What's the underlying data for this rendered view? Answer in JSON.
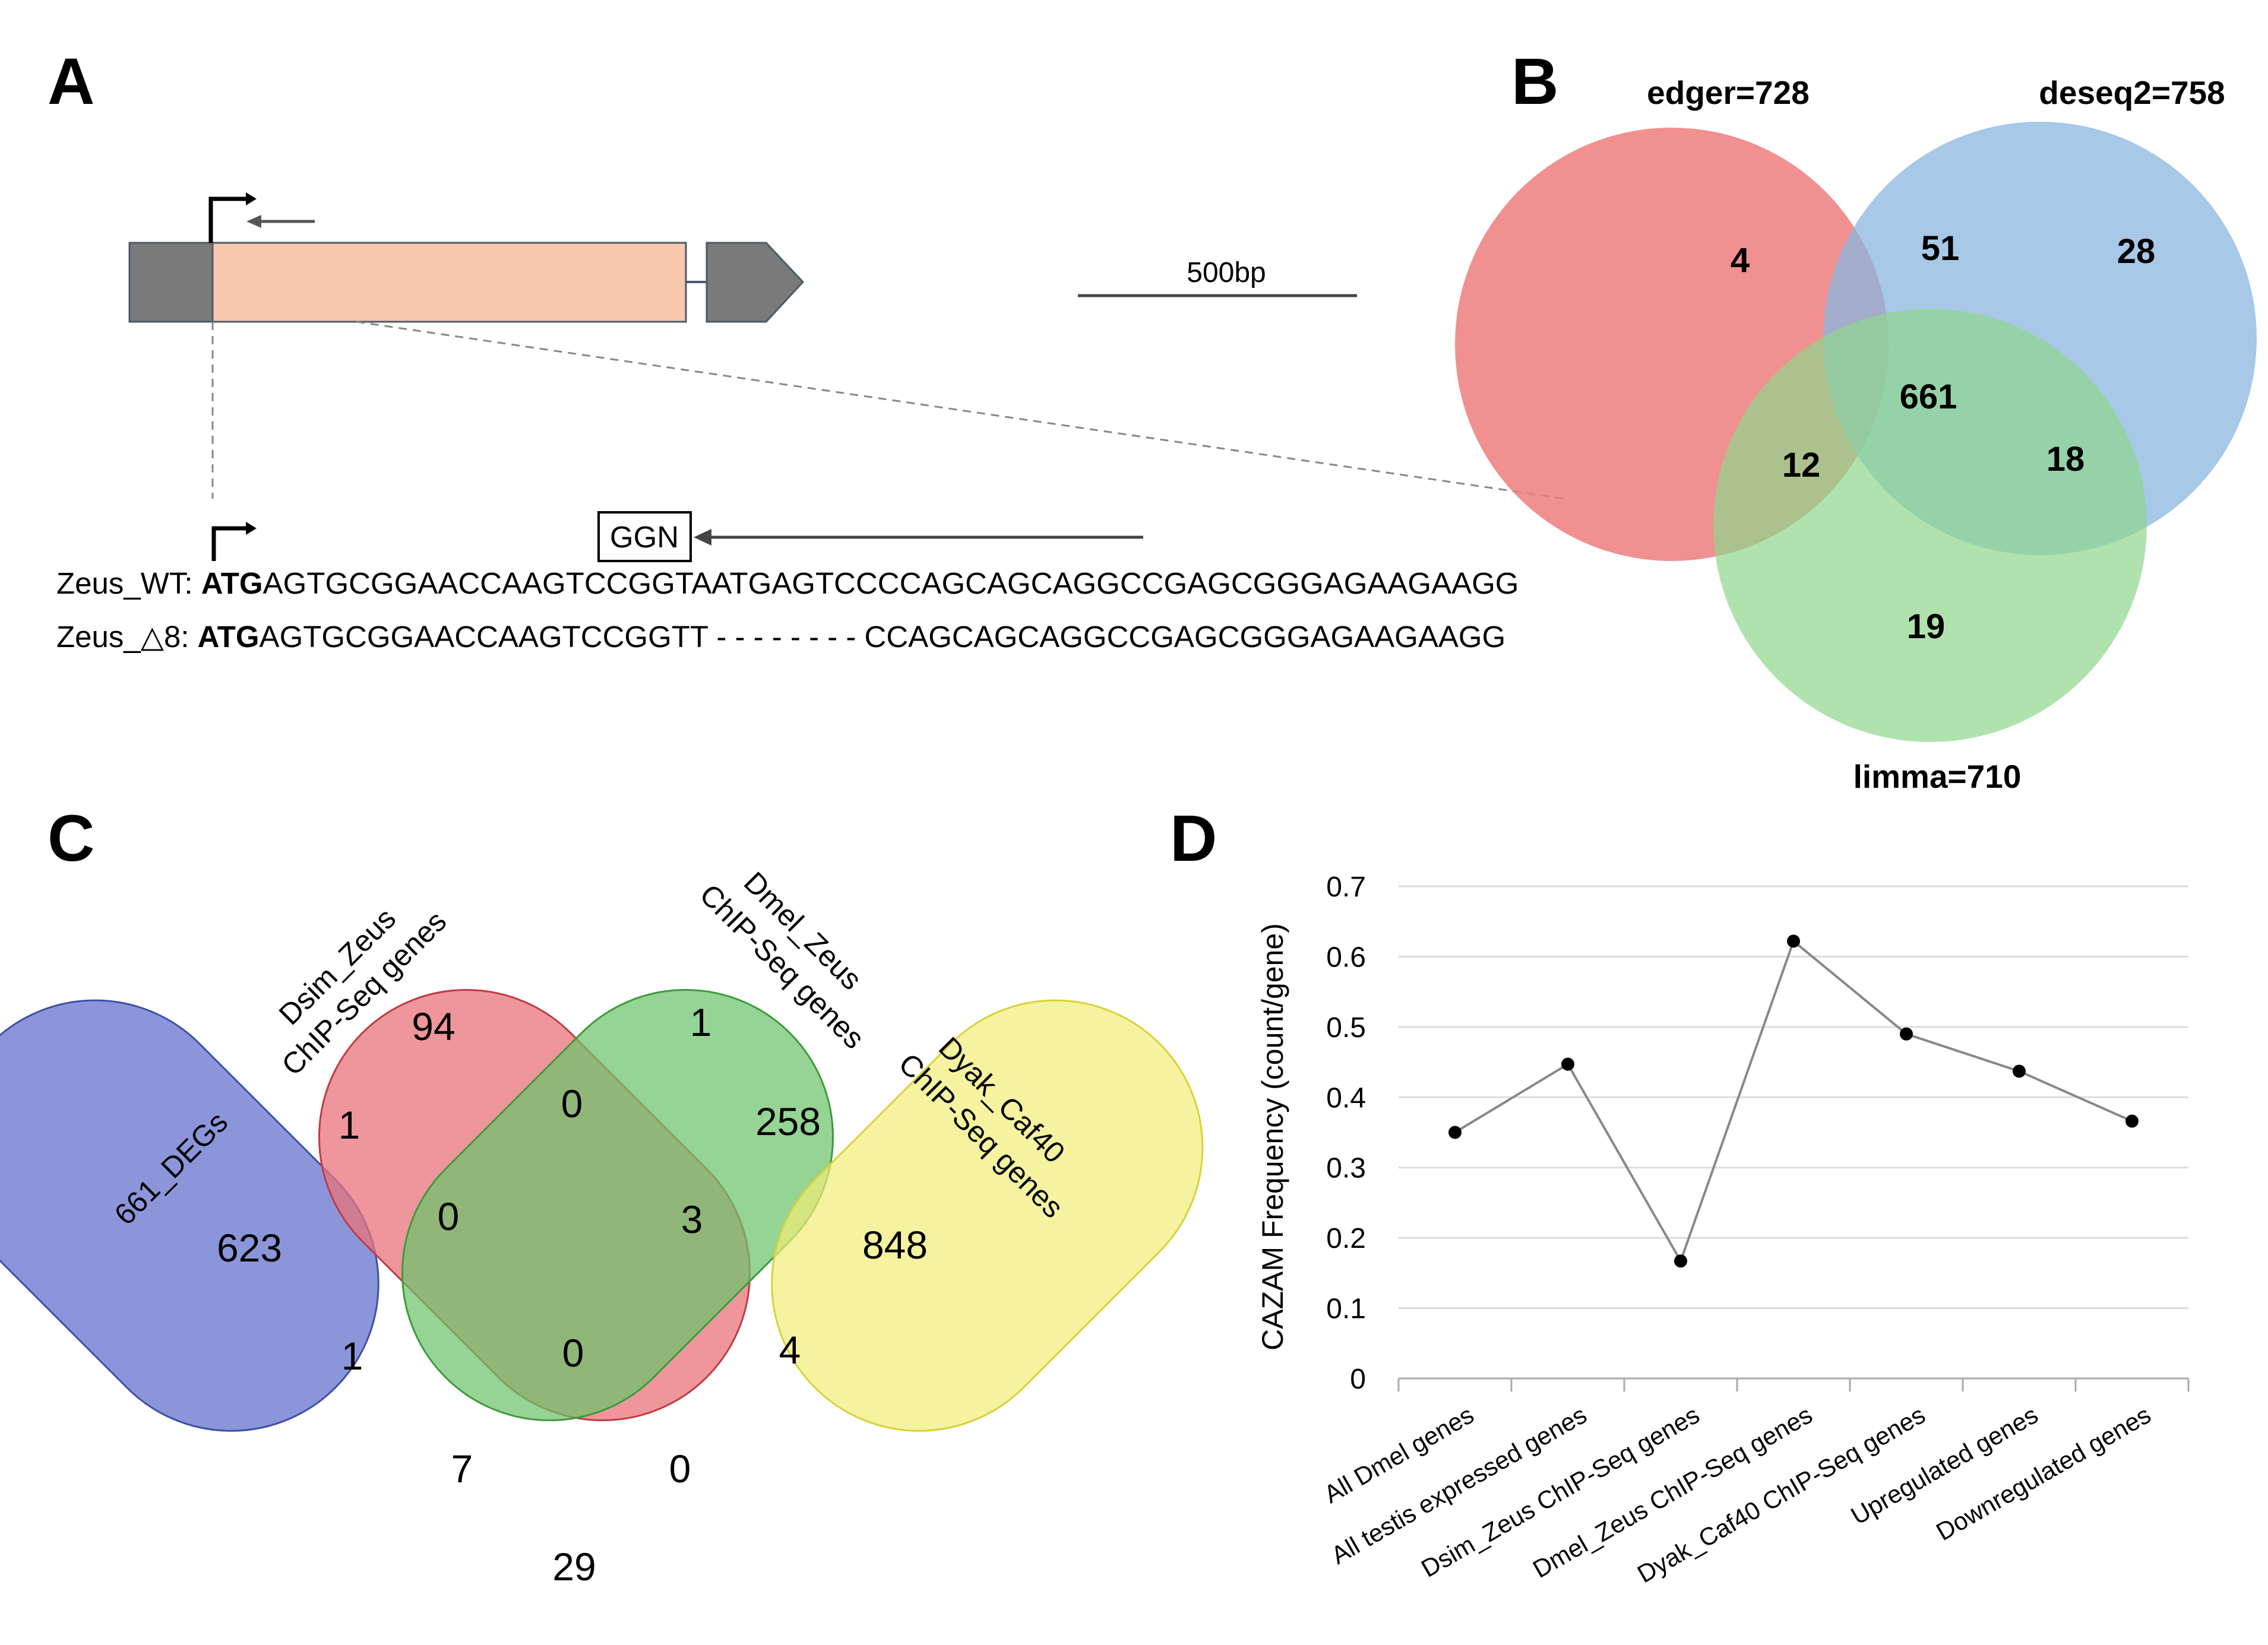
{
  "panels": {
    "a": "A",
    "b": "B",
    "c": "C",
    "d": "D"
  },
  "panel_a": {
    "scale_label": "500bp",
    "box_label": "GGN",
    "wt_label": "Zeus_WT: ",
    "wt_start": "ATG",
    "wt_seq": "AGTGCGGAACCAAGTCCGGTAATGAGTCCCCAGCAGCAGGCCGAGCGGGAGAAGAAGG",
    "mut_label": "Zeus_△8: ",
    "mut_start": "ATG",
    "mut_seq": "AGTGCGGAACCAAGTCCGGTT - - - - - - - -  CCAGCAGCAGGCCGAGCGGGAGAAGAAGG",
    "colors": {
      "exon": "#f7c8ae",
      "utr": "#7a7a7a"
    }
  },
  "panel_b": {
    "sets": [
      {
        "name": "edger=728",
        "color": "#ee7d7d"
      },
      {
        "name": "deseq2=758",
        "color": "#8ab6df"
      },
      {
        "name": "limma=710",
        "color": "#8ed68b"
      }
    ],
    "regions": {
      "edger_only": "4",
      "deseq2_only": "28",
      "limma_only": "19",
      "edger_deseq2": "51",
      "edger_limma": "12",
      "deseq2_limma": "18",
      "all": "661"
    }
  },
  "panel_c": {
    "sets": [
      {
        "name": "661_DEGs",
        "color": "#6a78d0"
      },
      {
        "name": "Dsim_Zeus",
        "line2": "ChIP-Seq genes",
        "color": "#e8737b"
      },
      {
        "name": "Dmel_Zeus",
        "line2": "ChIP-Seq genes",
        "color": "#6cc46b"
      },
      {
        "name": "Dyak_Caf40",
        "line2": "ChIP-Seq genes",
        "color": "#f1ee78"
      }
    ],
    "regions": {
      "degs_only": "623",
      "dsim_only": "94",
      "dmel_only": "1",
      "dyak_only": "848",
      "degs_dsim": "1",
      "dsim_dmel": "0",
      "dmel_dyak": "258",
      "degs_dsim_dmel": "0",
      "dsim_dmel_dyak": "3",
      "degs_dmel": "1",
      "all_four": "0",
      "dsim_dyak": "4",
      "degs_dmel_dyak": "7",
      "degs_dsim_dyak": "0",
      "degs_dyak": "29"
    }
  },
  "chart_data": {
    "type": "line",
    "title": "",
    "xlabel": "",
    "ylabel": "CAZAM Frequency (count/gene)",
    "ylim": [
      0,
      0.7
    ],
    "yticks": [
      "0",
      "0.1",
      "0.2",
      "0.3",
      "0.4",
      "0.5",
      "0.6",
      "0.7"
    ],
    "categories": [
      "All Dmel genes",
      "All testis expressed genes",
      "Dsim_Zeus ChIP-Seq genes",
      "Dmel_Zeus ChIP-Seq genes",
      "Dyak_Caf40 ChIP-Seq genes",
      "Upregulated genes",
      "Downregulated genes"
    ],
    "values": [
      0.35,
      0.447,
      0.167,
      0.622,
      0.49,
      0.437,
      0.366
    ],
    "line_color": "#888888",
    "marker_color": "#000000"
  }
}
